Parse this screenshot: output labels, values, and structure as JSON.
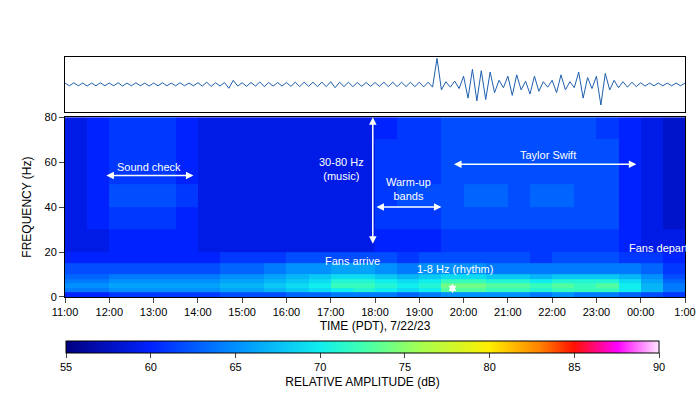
{
  "chart_data": [
    {
      "type": "line",
      "x": [
        11,
        11.1,
        11.2,
        11.3,
        11.4,
        11.5,
        11.6,
        11.7,
        11.8,
        11.9,
        12,
        12.1,
        12.2,
        12.3,
        12.4,
        12.5,
        12.6,
        12.7,
        12.8,
        12.9,
        13,
        13.1,
        13.2,
        13.3,
        13.4,
        13.5,
        13.6,
        13.7,
        13.8,
        13.9,
        14,
        14.1,
        14.2,
        14.3,
        14.4,
        14.5,
        14.6,
        14.7,
        14.8,
        14.9,
        15,
        15.1,
        15.2,
        15.3,
        15.4,
        15.5,
        15.6,
        15.7,
        15.8,
        15.9,
        16,
        16.1,
        16.2,
        16.3,
        16.4,
        16.5,
        16.6,
        16.7,
        16.8,
        16.9,
        17,
        17.1,
        17.2,
        17.3,
        17.4,
        17.5,
        17.6,
        17.7,
        17.8,
        17.9,
        18,
        18.1,
        18.2,
        18.3,
        18.4,
        18.5,
        18.6,
        18.7,
        18.8,
        18.9,
        19,
        19.1,
        19.2,
        19.3,
        19.4,
        19.5,
        19.6,
        19.7,
        19.8,
        19.9,
        20,
        20.1,
        20.2,
        20.3,
        20.4,
        20.5,
        20.6,
        20.7,
        20.8,
        20.9,
        21,
        21.1,
        21.2,
        21.3,
        21.4,
        21.5,
        21.6,
        21.7,
        21.8,
        21.9,
        22,
        22.1,
        22.2,
        22.3,
        22.4,
        22.5,
        22.6,
        22.7,
        22.8,
        22.9,
        23,
        23.1,
        23.2,
        23.3,
        23.4,
        23.5,
        23.6,
        23.7,
        23.8,
        23.9,
        24,
        24.1,
        24.2,
        24.3,
        24.4,
        24.5,
        24.6,
        24.7,
        24.8,
        24.9,
        25
      ],
      "values": [
        0.05,
        -0.05,
        0.06,
        -0.05,
        0.05,
        -0.06,
        0.05,
        -0.05,
        0.06,
        -0.05,
        0.05,
        -0.05,
        0.06,
        -0.06,
        0.05,
        -0.05,
        0.06,
        -0.05,
        0.05,
        -0.06,
        0.05,
        -0.05,
        0.06,
        -0.05,
        0.05,
        -0.05,
        0.06,
        -0.05,
        0.05,
        -0.05,
        0.06,
        -0.06,
        0.08,
        -0.07,
        0.06,
        -0.06,
        0.07,
        -0.14,
        0.15,
        -0.06,
        0.06,
        -0.07,
        0.07,
        -0.06,
        0.09,
        -0.08,
        0.07,
        -0.06,
        0.07,
        -0.06,
        0.07,
        -0.07,
        0.08,
        -0.08,
        0.08,
        -0.07,
        0.08,
        -0.08,
        0.08,
        -0.08,
        0.1,
        -0.12,
        0.08,
        -0.08,
        0.08,
        -0.08,
        0.07,
        -0.07,
        0.07,
        -0.07,
        0.07,
        -0.07,
        0.08,
        -0.08,
        0.08,
        -0.08,
        0.08,
        -0.08,
        0.08,
        -0.08,
        0.08,
        -0.09,
        0.08,
        -0.1,
        0.95,
        -0.2,
        0.1,
        -0.1,
        0.12,
        -0.15,
        0.3,
        -0.5,
        0.55,
        -0.6,
        0.5,
        -0.55,
        0.45,
        -0.3,
        0.15,
        -0.12,
        0.3,
        -0.4,
        0.35,
        -0.2,
        0.12,
        -0.35,
        0.3,
        -0.25,
        0.1,
        -0.1,
        0.15,
        -0.3,
        0.35,
        -0.2,
        0.1,
        -0.12,
        0.45,
        -0.5,
        0.25,
        -0.15,
        0.3,
        -0.75,
        0.4,
        -0.2,
        0.15,
        -0.12,
        0.1,
        -0.1,
        0.08,
        -0.08,
        0.06,
        -0.06,
        0.05,
        -0.05,
        0.05,
        -0.05,
        0.05,
        -0.05,
        0.05,
        -0.05,
        0.05
      ],
      "color": "#1f5fae",
      "xlim": [
        11,
        25
      ],
      "ylim": [
        -1,
        1
      ],
      "tick_labels": false
    },
    {
      "type": "heatmap",
      "xlabel": "TIME (PDT), 7/22/23",
      "ylabel": "FREQUENCY (Hz)",
      "x": [
        11,
        11.5,
        12,
        12.5,
        13,
        13.5,
        14,
        14.5,
        15,
        15.5,
        16,
        16.5,
        17,
        17.5,
        18,
        18.5,
        19,
        19.5,
        20,
        20.5,
        21,
        21.5,
        22,
        22.5,
        23,
        23.5,
        24,
        24.5,
        25
      ],
      "y": [
        0,
        2,
        4,
        6,
        8,
        10,
        15,
        20,
        30,
        40,
        50,
        60,
        70,
        80
      ],
      "z": [
        [
          60,
          60,
          61,
          61,
          61,
          61,
          61,
          62,
          62,
          62,
          63,
          63,
          64,
          64,
          64,
          63,
          64,
          65,
          65,
          65,
          65,
          64,
          65,
          64,
          64,
          63,
          62,
          61
        ],
        [
          64,
          64,
          65,
          65,
          65,
          65,
          65,
          66,
          66,
          67,
          68,
          69,
          70,
          71,
          70,
          69,
          70,
          73,
          73,
          72,
          72,
          71,
          72,
          72,
          72,
          70,
          67,
          64
        ],
        [
          65,
          65,
          66,
          66,
          66,
          66,
          66,
          67,
          67,
          68,
          69,
          70,
          72,
          72,
          71,
          70,
          71,
          74,
          74,
          73,
          73,
          72,
          73,
          72,
          73,
          70,
          67,
          64
        ],
        [
          64,
          64,
          65,
          65,
          65,
          65,
          65,
          66,
          66,
          67,
          68,
          69,
          71,
          71,
          70,
          69,
          70,
          72,
          72,
          71,
          71,
          70,
          71,
          71,
          71,
          69,
          66,
          63
        ],
        [
          63,
          63,
          64,
          64,
          64,
          64,
          64,
          65,
          65,
          66,
          67,
          68,
          69,
          69,
          68,
          67,
          68,
          69,
          69,
          68,
          68,
          67,
          68,
          68,
          68,
          67,
          65,
          62
        ],
        [
          62,
          62,
          62,
          62,
          62,
          62,
          62,
          63,
          63,
          64,
          65,
          65,
          66,
          66,
          65,
          64,
          65,
          65,
          65,
          64,
          64,
          64,
          64,
          64,
          64,
          64,
          63,
          61
        ],
        [
          60,
          60,
          60,
          60,
          60,
          60,
          60,
          61,
          61,
          61,
          62,
          62,
          62,
          62,
          62,
          61,
          62,
          62,
          62,
          62,
          62,
          61,
          62,
          62,
          62,
          61,
          61,
          60
        ],
        [
          59,
          59,
          60,
          60,
          60,
          60,
          59,
          59,
          59,
          59,
          59,
          59,
          59,
          59,
          60,
          60,
          60,
          61,
          61,
          61,
          61,
          61,
          61,
          61,
          61,
          60,
          59,
          59
        ],
        [
          59,
          60,
          61,
          61,
          61,
          60,
          59,
          59,
          59,
          59,
          59,
          59,
          59,
          59,
          61,
          61,
          61,
          62,
          62,
          62,
          62,
          62,
          62,
          62,
          62,
          60,
          59,
          58
        ],
        [
          59,
          60,
          62,
          62,
          62,
          61,
          59,
          59,
          59,
          59,
          59,
          59,
          59,
          59,
          61,
          62,
          62,
          62,
          63,
          63,
          62,
          63,
          63,
          62,
          62,
          60,
          59,
          58
        ],
        [
          59,
          60,
          61,
          61,
          61,
          60,
          59,
          59,
          59,
          59,
          59,
          59,
          59,
          59,
          61,
          61,
          61,
          62,
          62,
          62,
          62,
          62,
          62,
          62,
          62,
          60,
          59,
          58
        ],
        [
          59,
          60,
          61,
          61,
          61,
          60,
          59,
          59,
          59,
          59,
          59,
          59,
          59,
          59,
          61,
          61,
          61,
          62,
          62,
          62,
          62,
          62,
          62,
          62,
          62,
          60,
          59,
          58
        ],
        [
          59,
          60,
          61,
          61,
          61,
          60,
          59,
          59,
          59,
          59,
          59,
          59,
          59,
          59,
          60,
          61,
          61,
          62,
          62,
          62,
          62,
          62,
          62,
          62,
          61,
          60,
          59,
          58
        ]
      ],
      "xlim": [
        11,
        25
      ],
      "ylim": [
        0,
        80
      ],
      "xticks": [
        {
          "value": 11,
          "label": "11:00"
        },
        {
          "value": 12,
          "label": "12:00"
        },
        {
          "value": 13,
          "label": "13:00"
        },
        {
          "value": 14,
          "label": "14:00"
        },
        {
          "value": 15,
          "label": "15:00"
        },
        {
          "value": 16,
          "label": "16:00"
        },
        {
          "value": 17,
          "label": "17:00"
        },
        {
          "value": 18,
          "label": "18:00"
        },
        {
          "value": 19,
          "label": "19:00"
        },
        {
          "value": 20,
          "label": "20:00"
        },
        {
          "value": 21,
          "label": "21:00"
        },
        {
          "value": 22,
          "label": "22:00"
        },
        {
          "value": 23,
          "label": "23:00"
        },
        {
          "value": 24,
          "label": "00:00"
        },
        {
          "value": 25,
          "label": "1:00"
        }
      ],
      "yticks": [
        0,
        20,
        40,
        60,
        80
      ],
      "colorbar": {
        "title": "RELATIVE AMPLITUDE (dB)",
        "range": [
          55,
          90
        ],
        "ticks": [
          55,
          60,
          65,
          70,
          75,
          80,
          85,
          90
        ]
      },
      "annotations": [
        {
          "text": [
            "Sound check"
          ],
          "x": 12.9,
          "y": 58
        },
        {
          "text": [
            "30-80 Hz",
            "(music)"
          ],
          "x": 17.25,
          "y": 57
        },
        {
          "text": [
            "Warm-up",
            "bands"
          ],
          "x": 18.75,
          "y": 48
        },
        {
          "text": [
            "Taylor Swift"
          ],
          "x": 21.9,
          "y": 63
        },
        {
          "text": [
            "Fans arrive"
          ],
          "x": 17.5,
          "y": 16
        },
        {
          "text": [
            "1-8 Hz (rhythm)"
          ],
          "x": 19.8,
          "y": 12.5
        },
        {
          "text": [
            "Fans depart"
          ],
          "x": 24.4,
          "y": 22
        }
      ],
      "arrows": [
        {
          "x0": 11.9,
          "x1": 13.9,
          "y0": 54,
          "y1": 54
        },
        {
          "x0": 17.95,
          "x1": 17.95,
          "y0": 23,
          "y1": 80
        },
        {
          "x0": 18.0,
          "x1": 19.5,
          "y0": 40,
          "y1": 40
        },
        {
          "x0": 19.75,
          "x1": 23.9,
          "y0": 59,
          "y1": 59
        },
        {
          "x0": 19.75,
          "x1": 19.75,
          "y0": 1,
          "y1": 6
        }
      ]
    }
  ]
}
